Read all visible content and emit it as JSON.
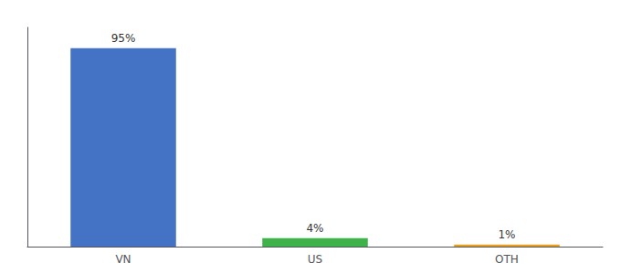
{
  "chart_data": {
    "type": "bar",
    "categories": [
      "VN",
      "US",
      "OTH"
    ],
    "values": [
      95,
      4,
      1
    ],
    "value_labels": [
      "95%",
      "4%",
      "1%"
    ],
    "colors": [
      "#4472c4",
      "#3db34a",
      "#e8a020"
    ],
    "ylim": [
      0,
      105
    ],
    "grid": false,
    "data_labels": true,
    "tick_labels": "x"
  }
}
